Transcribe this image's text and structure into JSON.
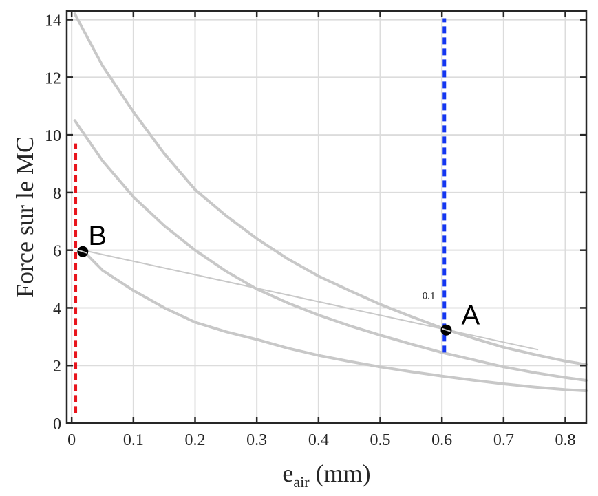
{
  "chart_data": {
    "type": "line",
    "title": "",
    "xlabel": "e",
    "xlabel_subscript": "air",
    "xlabel_unit": " (mm)",
    "ylabel": "Force sur le MC",
    "xlim": [
      -0.008,
      0.834
    ],
    "ylim": [
      0,
      14.3
    ],
    "grid": true,
    "xticks": [
      0,
      0.1,
      0.2,
      0.3,
      0.4,
      0.5,
      0.6,
      0.7,
      0.8
    ],
    "xtick_labels": [
      "0",
      "0.1",
      "0.2",
      "0.3",
      "0.4",
      "0.5",
      "0.6",
      "0.7",
      "0.8"
    ],
    "yticks": [
      0,
      2,
      4,
      6,
      8,
      10,
      12,
      14
    ],
    "ytick_labels": [
      "0",
      "2",
      "4",
      "6",
      "8",
      "10",
      "12",
      "14"
    ],
    "series": [
      {
        "name": "curve-high",
        "color": "#c8c8c8",
        "style": "solid",
        "x": [
          0.005,
          0.05,
          0.1,
          0.15,
          0.2,
          0.25,
          0.3,
          0.35,
          0.4,
          0.45,
          0.5,
          0.55,
          0.6,
          0.65,
          0.7,
          0.75,
          0.8,
          0.834
        ],
        "y": [
          14.2,
          12.4,
          10.8,
          9.35,
          8.1,
          7.2,
          6.4,
          5.7,
          5.1,
          4.6,
          4.12,
          3.7,
          3.3,
          2.95,
          2.63,
          2.38,
          2.15,
          2.03
        ]
      },
      {
        "name": "curve-mid",
        "color": "#c8c8c8",
        "style": "solid",
        "x": [
          0.005,
          0.05,
          0.1,
          0.15,
          0.2,
          0.25,
          0.3,
          0.35,
          0.4,
          0.45,
          0.5,
          0.55,
          0.6,
          0.65,
          0.7,
          0.75,
          0.8,
          0.834
        ],
        "y": [
          10.5,
          9.1,
          7.85,
          6.85,
          6.0,
          5.27,
          4.65,
          4.17,
          3.75,
          3.38,
          3.05,
          2.74,
          2.45,
          2.2,
          1.95,
          1.75,
          1.58,
          1.48
        ]
      },
      {
        "name": "curve-low",
        "color": "#c8c8c8",
        "style": "solid",
        "x": [
          0.02,
          0.05,
          0.1,
          0.15,
          0.2,
          0.25,
          0.3,
          0.35,
          0.4,
          0.45,
          0.5,
          0.55,
          0.6,
          0.65,
          0.7,
          0.75,
          0.8,
          0.834
        ],
        "y": [
          5.95,
          5.3,
          4.6,
          4.0,
          3.5,
          3.17,
          2.9,
          2.6,
          2.35,
          2.14,
          1.95,
          1.78,
          1.63,
          1.49,
          1.36,
          1.25,
          1.16,
          1.12
        ]
      },
      {
        "name": "line-B-to-A",
        "color": "#c8c8c8",
        "style": "thin",
        "x": [
          0.018,
          0.755
        ],
        "y": [
          6.0,
          2.55
        ]
      }
    ],
    "vlines": [
      {
        "name": "red-dashed-line",
        "x": 0.006,
        "y": [
          0.35,
          9.7
        ],
        "color": "#e8141c"
      },
      {
        "name": "blue-dashed-line",
        "x": 0.604,
        "y": [
          2.45,
          14.05
        ],
        "color": "#1436f0"
      }
    ],
    "points": [
      {
        "label": "A",
        "x": 0.607,
        "y": 3.23
      },
      {
        "label": "B",
        "x": 0.018,
        "y": 5.95
      }
    ],
    "annotations": [
      {
        "text": "0.1",
        "x": 0.575,
        "y": 4.4
      }
    ]
  }
}
